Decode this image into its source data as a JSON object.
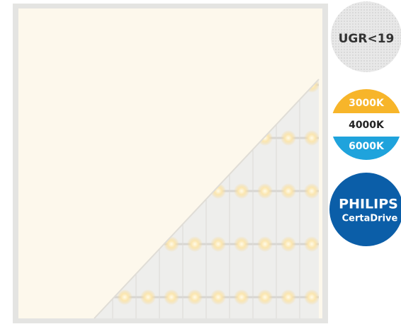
{
  "badges": {
    "glare": "UGR<19",
    "color_temperatures": [
      "3000K",
      "4000K",
      "6000K"
    ],
    "brand": "PHILIPS",
    "driver": "CertaDrive"
  }
}
